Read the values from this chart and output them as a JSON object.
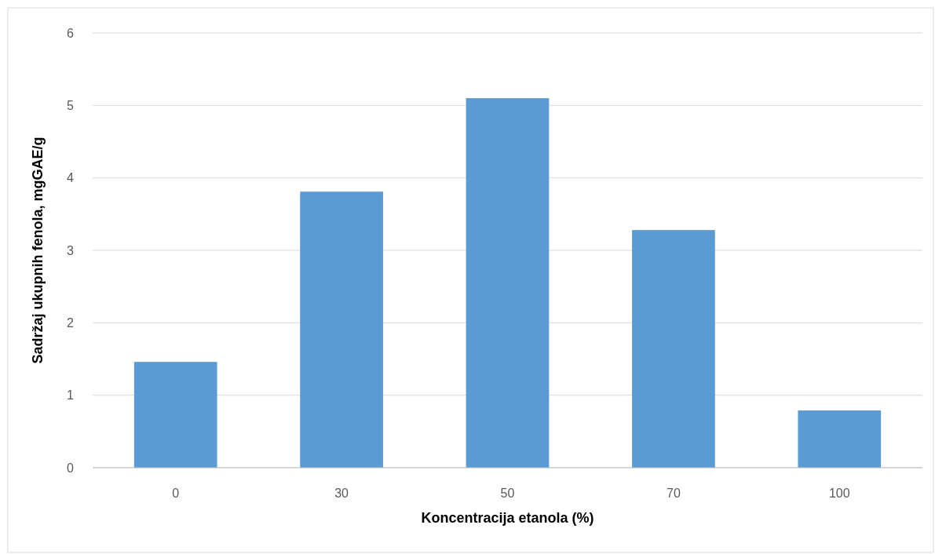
{
  "chart_data": {
    "type": "bar",
    "xlabel": "Koncentracija etanola (%)",
    "ylabel": "Sadržaj ukupnih fenola, mgGAE/g",
    "categories": [
      "0",
      "30",
      "50",
      "70",
      "100"
    ],
    "values": [
      1.46,
      3.81,
      5.1,
      3.28,
      0.79
    ],
    "color": "#5b9bd5",
    "ylim": [
      0,
      6
    ],
    "yticks": [
      0,
      1,
      2,
      3,
      4,
      5,
      6
    ],
    "grid": "y"
  }
}
